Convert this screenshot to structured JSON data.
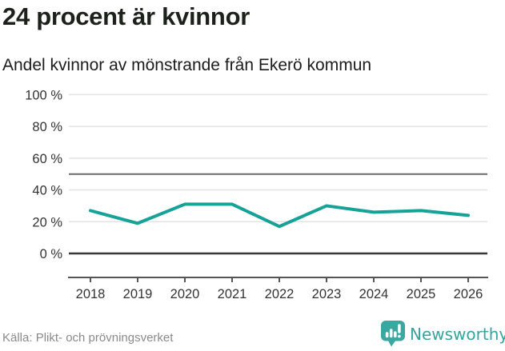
{
  "header": {
    "title": "24 procent är kvinnor",
    "subtitle": "Andel kvinnor av mönstrande från Ekerö kommun"
  },
  "chart_data": {
    "type": "line",
    "title": "24 procent är kvinnor",
    "subtitle": "Andel kvinnor av mönstrande från Ekerö kommun",
    "x": [
      "2018",
      "2019",
      "2020",
      "2021",
      "2022",
      "2023",
      "2024",
      "2025",
      "2026"
    ],
    "series": [
      {
        "name": "Andel kvinnor av mönstrande",
        "values": [
          27,
          19,
          31,
          31,
          17,
          30,
          26,
          27,
          24
        ]
      }
    ],
    "xlabel": "",
    "ylabel": "",
    "ylim": [
      0,
      100
    ],
    "yticks": [
      {
        "value": 0,
        "label": "0 %"
      },
      {
        "value": 20,
        "label": "20 %"
      },
      {
        "value": 40,
        "label": "40 %"
      },
      {
        "value": 60,
        "label": "60 %"
      },
      {
        "value": 80,
        "label": "80 %"
      },
      {
        "value": 100,
        "label": "100 %"
      }
    ],
    "reference_line": 50,
    "baseline": 0,
    "grid": true,
    "legend": "none"
  },
  "footer": {
    "source": "Källa: Plikt- och prövningsverket",
    "brand": "Newsworthy"
  },
  "icons": {
    "brand_icon": "newsworthy-bar-chart-bubble-icon"
  },
  "colors": {
    "line": "#17A297",
    "grid": "#E3E3E3",
    "reference_line": "#6B6B6B",
    "baseline": "#383838",
    "axis": "#555555",
    "tick_text": "#333333",
    "title_text": "#1D211C",
    "source_text": "#8A8A8A",
    "brand_teal": "#35A49E"
  }
}
